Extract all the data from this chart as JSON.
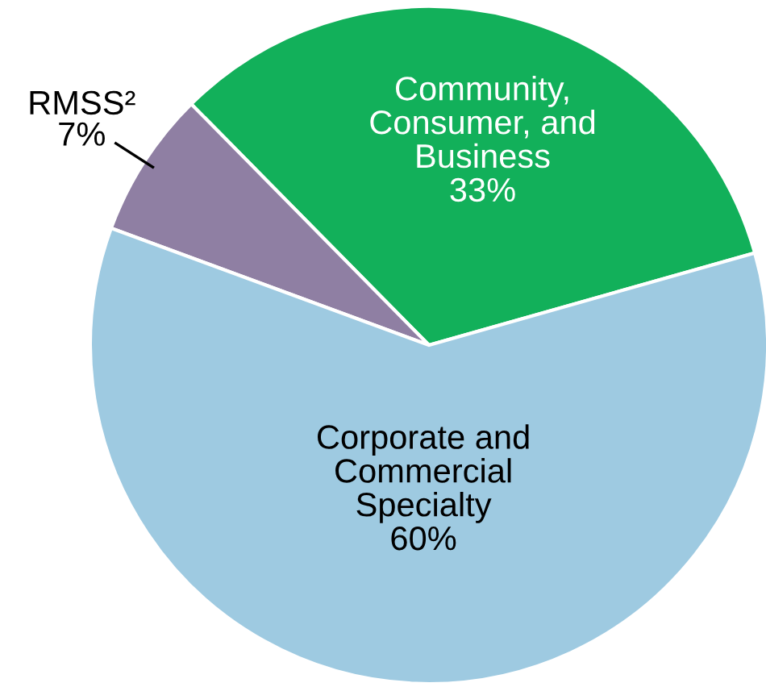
{
  "chart_data": {
    "type": "pie",
    "categories": [
      "Community,\nConsumer, and\nBusiness",
      "RMSS²",
      "Corporate and\nCommercial\nSpecialty"
    ],
    "values": [
      33,
      7,
      60
    ],
    "colors": [
      "#12b05a",
      "#8f7fa3",
      "#9ecae1"
    ],
    "value_labels": [
      "33%",
      "7%",
      "60%"
    ]
  }
}
